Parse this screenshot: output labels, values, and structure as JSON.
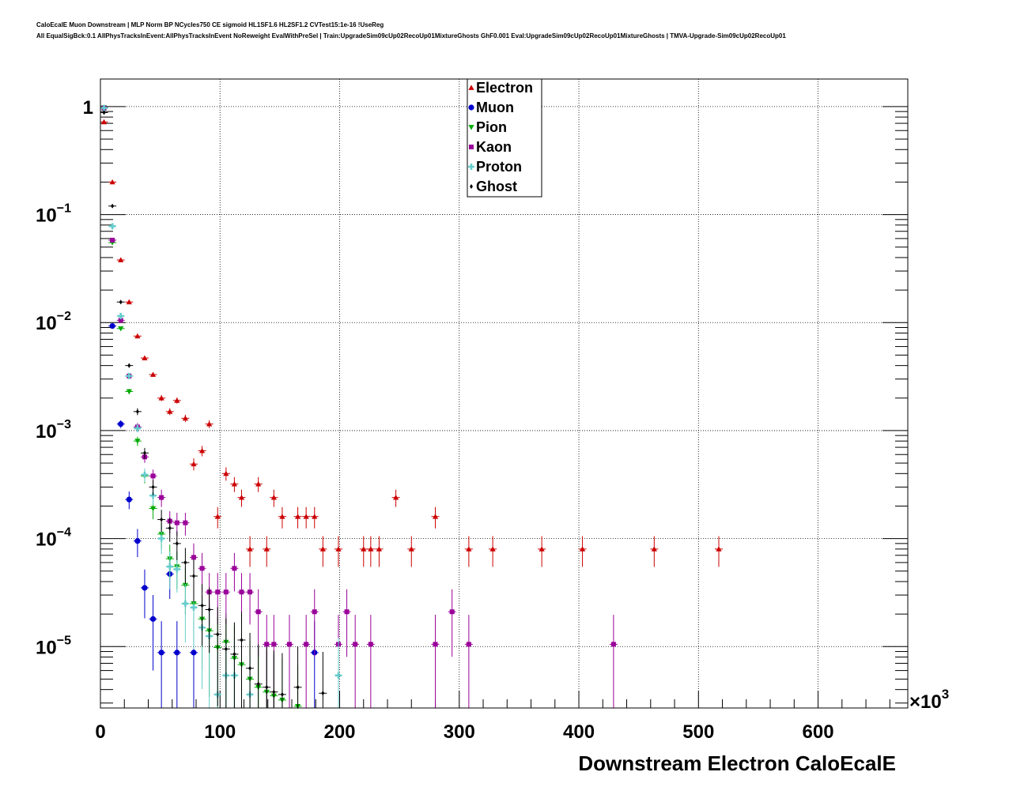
{
  "header": {
    "title_line1": "CaloEcalE Muon Downstream | MLP Norm BP NCycles750 CE sigmoid HL1SF1.6 HL2SF1.2 CVTest15:1e-16 !UseReg",
    "title_line2": "All EqualSigBck:0.1 AllPhysTracksInEvent:AllPhysTracksInEvent NoReweight EvalWithPreSel | Train:UpgradeSim09cUp02RecoUp01MixtureGhosts GhF0.001 Eval:UpgradeSim09cUp02RecoUp01MixtureGhosts | TMVA-Upgrade-Sim09cUp02RecoUp01"
  },
  "chart_data": {
    "type": "scatter",
    "xlabel": "Downstream Electron CaloEcalE",
    "x_multiplier_label": "×10",
    "x_multiplier_exp": "3",
    "xlim": [
      0,
      675
    ],
    "ylim": [
      2.7e-06,
      1.8
    ],
    "yscale": "log",
    "grid": true,
    "legend_position": "top-center",
    "x_ticks": [
      0,
      100,
      200,
      300,
      400,
      500,
      600
    ],
    "x_tick_labels": [
      "0",
      "100",
      "200",
      "300",
      "400",
      "500",
      "600"
    ],
    "y_ticks": [
      {
        "value": 1,
        "base": "1",
        "exp": ""
      },
      {
        "value": 0.1,
        "base": "10",
        "exp": "−1"
      },
      {
        "value": 0.01,
        "base": "10",
        "exp": "−2"
      },
      {
        "value": 0.001,
        "base": "10",
        "exp": "−3"
      },
      {
        "value": 0.0001,
        "base": "10",
        "exp": "−4"
      },
      {
        "value": 1e-05,
        "base": "10",
        "exp": "−5"
      }
    ],
    "series": [
      {
        "name": "Electron",
        "color": "#cc0000",
        "marker": "triangle-up",
        "points": [
          [
            3,
            0.72
          ],
          [
            10,
            0.2
          ],
          [
            17,
            0.038
          ],
          [
            24,
            0.0155
          ],
          [
            31,
            0.0075
          ],
          [
            37,
            0.0047
          ],
          [
            44,
            0.0033
          ],
          [
            51,
            0.002
          ],
          [
            58,
            0.0015
          ],
          [
            64,
            0.0019
          ],
          [
            71,
            0.0013
          ],
          [
            78,
            0.00049
          ],
          [
            85,
            0.00065
          ],
          [
            91,
            0.00115
          ],
          [
            98,
            0.00016
          ],
          [
            105,
            0.0004
          ],
          [
            112,
            0.00032
          ],
          [
            118,
            0.00024
          ],
          [
            125,
            8e-05
          ],
          [
            132,
            0.00032
          ],
          [
            139,
            8e-05
          ],
          [
            145,
            0.00024
          ],
          [
            152,
            0.00016
          ],
          [
            165,
            0.00016
          ],
          [
            172,
            0.00016
          ],
          [
            179,
            0.00016
          ],
          [
            186,
            8e-05
          ],
          [
            199,
            8e-05
          ],
          [
            220,
            8e-05
          ],
          [
            226,
            8e-05
          ],
          [
            233,
            8e-05
          ],
          [
            247,
            0.00024
          ],
          [
            260,
            8e-05
          ],
          [
            280,
            0.00016
          ],
          [
            308,
            8e-05
          ],
          [
            328,
            8e-05
          ],
          [
            369,
            8e-05
          ],
          [
            403,
            8e-05
          ],
          [
            463,
            8e-05
          ],
          [
            517,
            8e-05
          ]
        ]
      },
      {
        "name": "Muon",
        "color": "#0000cc",
        "marker": "circle",
        "points": [
          [
            3,
            0.97
          ],
          [
            10,
            0.0093
          ],
          [
            17,
            0.00115
          ],
          [
            24,
            0.00023
          ],
          [
            31,
            9.5e-05
          ],
          [
            37,
            3.5e-05
          ],
          [
            44,
            1.8e-05
          ],
          [
            51,
            8.8e-06
          ],
          [
            58,
            4.7e-05
          ],
          [
            64,
            8.8e-06
          ],
          [
            78,
            8.8e-06
          ],
          [
            179,
            8.8e-06
          ]
        ]
      },
      {
        "name": "Pion",
        "color": "#00aa00",
        "marker": "triangle-down",
        "points": [
          [
            3,
            0.98
          ],
          [
            10,
            0.055
          ],
          [
            17,
            0.0088
          ],
          [
            24,
            0.0023
          ],
          [
            31,
            0.0008
          ],
          [
            37,
            0.00038
          ],
          [
            44,
            0.00019
          ],
          [
            51,
            0.00011
          ],
          [
            58,
            6.5e-05
          ],
          [
            64,
            5.5e-05
          ],
          [
            71,
            3.7e-05
          ],
          [
            78,
            2.5e-05
          ],
          [
            85,
            1.8e-05
          ],
          [
            91,
            1.4e-05
          ],
          [
            98,
            9.8e-06
          ],
          [
            105,
            1.1e-05
          ],
          [
            112,
            7.8e-06
          ],
          [
            118,
            6.8e-06
          ],
          [
            125,
            5e-06
          ],
          [
            132,
            4.2e-06
          ],
          [
            139,
            3.8e-06
          ],
          [
            145,
            3.5e-06
          ],
          [
            152,
            3.2e-06
          ],
          [
            165,
            2.8e-06
          ]
        ]
      },
      {
        "name": "Kaon",
        "color": "#990099",
        "marker": "square",
        "points": [
          [
            3,
            0.97
          ],
          [
            10,
            0.058
          ],
          [
            17,
            0.0105
          ],
          [
            24,
            0.0032
          ],
          [
            31,
            0.00108
          ],
          [
            37,
            0.00057
          ],
          [
            44,
            0.00038
          ],
          [
            51,
            0.00024
          ],
          [
            58,
            0.000145
          ],
          [
            64,
            0.00014
          ],
          [
            71,
            0.00014
          ],
          [
            78,
            6.7e-05
          ],
          [
            85,
            5.3e-05
          ],
          [
            91,
            3.2e-05
          ],
          [
            98,
            3.2e-05
          ],
          [
            105,
            3.2e-05
          ],
          [
            112,
            5.3e-05
          ],
          [
            118,
            3.2e-05
          ],
          [
            125,
            3.2e-05
          ],
          [
            132,
            2.1e-05
          ],
          [
            139,
            1.05e-05
          ],
          [
            145,
            1.05e-05
          ],
          [
            158,
            1.05e-05
          ],
          [
            172,
            1.05e-05
          ],
          [
            179,
            2.1e-05
          ],
          [
            199,
            1.05e-05
          ],
          [
            206,
            2.1e-05
          ],
          [
            213,
            1.05e-05
          ],
          [
            226,
            1.05e-05
          ],
          [
            280,
            1.05e-05
          ],
          [
            294,
            2.1e-05
          ],
          [
            308,
            1.05e-05
          ],
          [
            429,
            1.05e-05
          ]
        ]
      },
      {
        "name": "Proton",
        "color": "#66cccc",
        "marker": "plus",
        "points": [
          [
            3,
            0.97
          ],
          [
            10,
            0.078
          ],
          [
            17,
            0.0115
          ],
          [
            24,
            0.0032
          ],
          [
            31,
            0.00105
          ],
          [
            37,
            0.00039
          ],
          [
            44,
            0.00025
          ],
          [
            51,
            0.0001
          ],
          [
            58,
            5.5e-05
          ],
          [
            64,
            5.2e-05
          ],
          [
            71,
            2.5e-05
          ],
          [
            78,
            2.3e-05
          ],
          [
            85,
            1.5e-05
          ],
          [
            91,
            1.25e-05
          ],
          [
            98,
            3.6e-06
          ],
          [
            105,
            5.4e-06
          ],
          [
            112,
            5.4e-06
          ],
          [
            125,
            3.6e-06
          ],
          [
            199,
            5.4e-06
          ]
        ]
      },
      {
        "name": "Ghost",
        "color": "#000000",
        "marker": "diamond",
        "points": [
          [
            3,
            0.88
          ],
          [
            10,
            0.12
          ],
          [
            17,
            0.0155
          ],
          [
            24,
            0.004
          ],
          [
            31,
            0.0015
          ],
          [
            37,
            0.00062
          ],
          [
            44,
            0.0003
          ],
          [
            51,
            0.00015
          ],
          [
            58,
            0.000125
          ],
          [
            64,
            9e-05
          ],
          [
            71,
            6e-05
          ],
          [
            78,
            4.5e-05
          ],
          [
            85,
            2.4e-05
          ],
          [
            91,
            2.2e-05
          ],
          [
            98,
            1.3e-05
          ],
          [
            105,
            9.5e-06
          ],
          [
            112,
            8.5e-06
          ],
          [
            118,
            1.15e-05
          ],
          [
            125,
            6.3e-06
          ],
          [
            132,
            4.5e-06
          ],
          [
            139,
            4.2e-06
          ],
          [
            145,
            3.8e-06
          ],
          [
            152,
            3.6e-06
          ],
          [
            165,
            4.2e-06
          ],
          [
            186,
            3.7e-06
          ]
        ]
      }
    ]
  }
}
